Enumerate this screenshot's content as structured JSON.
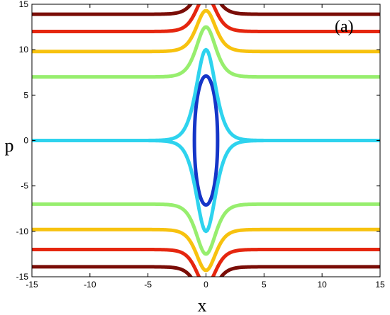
{
  "chart_data": {
    "type": "line",
    "panel_label": "(a)",
    "xlabel": "x",
    "ylabel": "p",
    "xlim": [
      -15,
      15
    ],
    "ylim": [
      -15,
      15
    ],
    "xticks": [
      -15,
      -10,
      -5,
      0,
      5,
      10,
      15
    ],
    "yticks": [
      -15,
      -10,
      -5,
      0,
      5,
      10,
      15
    ],
    "grid": false,
    "legend": "none",
    "series": [
      {
        "color": "#1536c8",
        "kind": "closed",
        "curve": "ellipse",
        "a": 1.0,
        "b": 7.1
      },
      {
        "color": "#2ed3ee",
        "kind": "open",
        "curve": "hump",
        "far": 0.0,
        "peak": 10.0
      },
      {
        "color": "#97ee6e",
        "kind": "open",
        "curve": "hump",
        "far": 7.0,
        "peak": 12.5
      },
      {
        "color": "#f7c20f",
        "kind": "open",
        "curve": "hump",
        "far": 9.8,
        "peak": 14.3
      },
      {
        "color": "#e5260f",
        "kind": "open",
        "curve": "hump",
        "far": 12.0,
        "peak": 16.0
      },
      {
        "color": "#7a0d07",
        "kind": "open",
        "curve": "hump",
        "far": 13.9,
        "peak": 17.5
      }
    ]
  }
}
